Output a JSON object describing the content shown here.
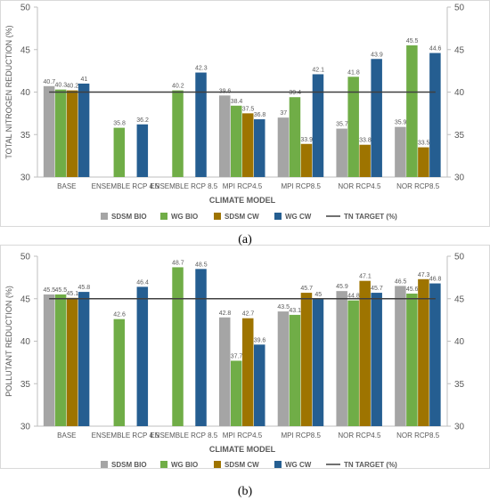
{
  "figure": {
    "label_a": "(a)",
    "label_b": "(b)"
  },
  "colors": {
    "sdsm_bio": "#a5a5a5",
    "wg_bio": "#70ad47",
    "sdsm_cw": "#9e7400",
    "wg_cw": "#255e91",
    "tn_target": "#404040"
  },
  "chart_data": [
    {
      "type": "bar",
      "panel": "a",
      "ylabel": "TOTAL NITROGEN REDUCTION (%)",
      "xlabel": "CLIMATE MODEL",
      "ylim": [
        30,
        50
      ],
      "yticks": [
        30,
        35,
        40,
        45,
        50
      ],
      "secondary_axis": true,
      "grid": false,
      "legend_position": "bottom",
      "categories": [
        "BASE",
        "ENSEMBLE RCP 4.5",
        "ENSEMBLE RCP 8.5",
        "MPI RCP4.5",
        "MPI RCP8.5",
        "NOR RCP4.5",
        "NOR RCP8.5"
      ],
      "series": [
        {
          "name": "SDSM BIO",
          "color_key": "sdsm_bio",
          "values": [
            40.7,
            null,
            null,
            39.6,
            37,
            35.7,
            35.9
          ],
          "labels": [
            "40.7",
            "",
            "",
            "39.6",
            "37",
            "35.7",
            "35.9"
          ]
        },
        {
          "name": "WG BIO",
          "color_key": "wg_bio",
          "values": [
            40.3,
            35.8,
            40.2,
            38.4,
            39.4,
            41.8,
            45.5
          ],
          "labels": [
            "40.3",
            "35.8",
            "40.2",
            "38.4",
            "39.4",
            "41.8",
            "45.5"
          ]
        },
        {
          "name": "SDSM CW",
          "color_key": "sdsm_cw",
          "values": [
            40.2,
            null,
            null,
            37.5,
            33.9,
            33.8,
            33.5
          ],
          "labels": [
            "40.2",
            "",
            "",
            "37.5",
            "33.9",
            "33.8",
            "33.5"
          ]
        },
        {
          "name": "WG CW",
          "color_key": "wg_cw",
          "values": [
            41,
            36.2,
            42.3,
            36.8,
            42.1,
            43.9,
            44.6
          ],
          "labels": [
            "41",
            "36.2",
            "42.3",
            "36.8",
            "42.1",
            "43.9",
            "44.6"
          ]
        }
      ],
      "target": {
        "name": "TN TARGET (%)",
        "value": 40
      }
    },
    {
      "type": "bar",
      "panel": "b",
      "ylabel": "POLLUTANT REDUCTION (%)",
      "xlabel": "CLIMATE MODEL",
      "ylim": [
        30,
        50
      ],
      "yticks": [
        30,
        35,
        40,
        45,
        50
      ],
      "secondary_axis": true,
      "grid": false,
      "legend_position": "bottom",
      "categories": [
        "BASE",
        "ENSEMBLE RCP 4.5",
        "ENSEMBLE RCP 8.5",
        "MPI RCP4.5",
        "MPI RCP8.5",
        "NOR RCP4.5",
        "NOR RCP8.5"
      ],
      "series": [
        {
          "name": "SDSM BIO",
          "color_key": "sdsm_bio",
          "values": [
            45.5,
            null,
            null,
            42.8,
            43.5,
            45.9,
            46.5
          ],
          "labels": [
            "45.5",
            "",
            "",
            "42.8",
            "43.5",
            "45.9",
            "46.5"
          ]
        },
        {
          "name": "WG BIO",
          "color_key": "wg_bio",
          "values": [
            45.5,
            42.6,
            48.7,
            37.7,
            43.1,
            44.8,
            45.6
          ],
          "labels": [
            "45.5",
            "42.6",
            "48.7",
            "37.7",
            "43.1",
            "44.8",
            "45.6"
          ]
        },
        {
          "name": "SDSM CW",
          "color_key": "sdsm_cw",
          "values": [
            45.1,
            null,
            null,
            42.7,
            45.7,
            47.1,
            47.3
          ],
          "labels": [
            "45.1",
            "",
            "",
            "42.7",
            "45.7",
            "47.1",
            "47.3"
          ]
        },
        {
          "name": "WG CW",
          "color_key": "wg_cw",
          "values": [
            45.8,
            46.4,
            48.5,
            39.6,
            45,
            45.7,
            46.8
          ],
          "labels": [
            "45.8",
            "46.4",
            "48.5",
            "39.6",
            "45",
            "45.7",
            "46.8"
          ]
        }
      ],
      "target": {
        "name": "TN TARGET (%)",
        "value": 45
      }
    }
  ]
}
